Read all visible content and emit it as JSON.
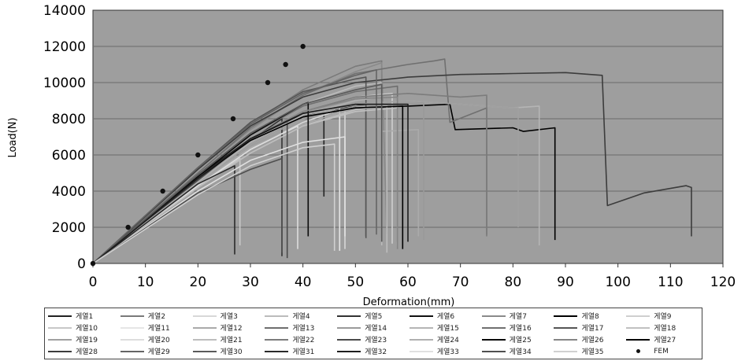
{
  "chart_data": {
    "type": "line",
    "xlabel": "Deformation(mm)",
    "ylabel": "Load(N)",
    "xlim": [
      0,
      120
    ],
    "ylim": [
      0,
      14000
    ],
    "x_ticks": [
      "0",
      "10",
      "20",
      "30",
      "40",
      "50",
      "60",
      "70",
      "80",
      "90",
      "100",
      "110",
      "120"
    ],
    "y_ticks": [
      "0",
      "2000",
      "4000",
      "6000",
      "8000",
      "10000",
      "12000",
      "14000"
    ],
    "grid": true,
    "legend_position": "bottom",
    "plot_background": "#9e9e9e",
    "series": [
      {
        "name": "게열1",
        "color": "#222222",
        "x": [
          0,
          20,
          30,
          40,
          44,
          44
        ],
        "y": [
          0,
          4600,
          6800,
          8300,
          8400,
          3700
        ]
      },
      {
        "name": "게열2",
        "color": "#7a7a7a",
        "x": [
          0,
          20,
          30,
          40,
          50,
          55,
          55
        ],
        "y": [
          0,
          5200,
          7700,
          9600,
          10900,
          11200,
          1400
        ]
      },
      {
        "name": "게열3",
        "color": "#d8d8d8",
        "x": [
          0,
          20,
          30,
          40,
          48,
          48
        ],
        "y": [
          0,
          4300,
          6300,
          7800,
          8600,
          800
        ]
      },
      {
        "name": "게열4",
        "color": "#bbbbbb",
        "x": [
          0,
          20,
          30,
          40,
          50,
          55,
          55
        ],
        "y": [
          0,
          4800,
          7100,
          8800,
          9800,
          10000,
          1000
        ]
      },
      {
        "name": "게열5",
        "color": "#333333",
        "x": [
          0,
          15,
          25,
          36,
          36
        ],
        "y": [
          0,
          3500,
          5800,
          8000,
          400
        ]
      },
      {
        "name": "게열6",
        "color": "#111111",
        "x": [
          0,
          20,
          30,
          40,
          52,
          52
        ],
        "y": [
          0,
          4800,
          6900,
          8200,
          8800,
          1500
        ]
      },
      {
        "name": "게열7",
        "color": "#8a8a8a",
        "x": [
          0,
          20,
          30,
          40,
          50,
          55,
          56
        ],
        "y": [
          0,
          5000,
          7400,
          9300,
          10600,
          11100,
          1600
        ]
      },
      {
        "name": "게열8",
        "color": "#000000",
        "x": [
          0,
          20,
          30,
          40,
          50,
          60,
          68,
          69,
          80,
          82,
          88,
          88
        ],
        "y": [
          0,
          4700,
          6800,
          8100,
          8600,
          8700,
          8800,
          7400,
          7500,
          7300,
          7500,
          1300
        ]
      },
      {
        "name": "게열9",
        "color": "#cfcfcf",
        "x": [
          0,
          20,
          30,
          40,
          50,
          57,
          57
        ],
        "y": [
          0,
          4600,
          6900,
          8400,
          9200,
          9400,
          1100
        ]
      },
      {
        "name": "게열10",
        "color": "#c8c8c8",
        "x": [
          0,
          20,
          28,
          28
        ],
        "y": [
          0,
          4300,
          5800,
          1000
        ]
      },
      {
        "name": "게열11",
        "color": "#e6e6e6",
        "x": [
          0,
          20,
          30,
          40,
          47,
          47
        ],
        "y": [
          0,
          4500,
          6600,
          8000,
          8600,
          700
        ]
      },
      {
        "name": "게열12",
        "color": "#aaaaaa",
        "x": [
          0,
          20,
          30,
          40,
          50,
          55,
          55,
          62,
          62
        ],
        "y": [
          0,
          4400,
          6400,
          7700,
          8600,
          8800,
          7300,
          7400,
          1500
        ]
      },
      {
        "name": "게열13",
        "color": "#6e6e6e",
        "x": [
          0,
          20,
          30,
          40,
          50,
          58,
          58
        ],
        "y": [
          0,
          4900,
          7100,
          8700,
          9500,
          9800,
          1200
        ]
      },
      {
        "name": "게열14",
        "color": "#9a9a9a",
        "x": [
          0,
          20,
          30,
          40,
          50,
          60,
          63,
          63
        ],
        "y": [
          0,
          4500,
          6600,
          8000,
          8700,
          8800,
          8900,
          1300
        ]
      },
      {
        "name": "게열15",
        "color": "#b5b5b5",
        "x": [
          0,
          20,
          30,
          40,
          50,
          60,
          70,
          80,
          85,
          85
        ],
        "y": [
          0,
          4600,
          6800,
          8200,
          8800,
          9000,
          8800,
          8600,
          8700,
          1000
        ]
      },
      {
        "name": "게열16",
        "color": "#707070",
        "x": [
          0,
          20,
          30,
          40,
          50,
          60,
          65,
          67,
          68,
          75,
          75
        ],
        "y": [
          0,
          5000,
          7500,
          9300,
          10500,
          11000,
          11200,
          11300,
          7800,
          8600,
          1600
        ]
      },
      {
        "name": "게열17",
        "color": "#555555",
        "x": [
          0,
          20,
          30,
          40,
          50,
          52,
          52
        ],
        "y": [
          0,
          5300,
          7800,
          9500,
          10200,
          10300,
          1400
        ]
      },
      {
        "name": "게열18",
        "color": "#c0c0c0",
        "x": [
          0,
          20,
          30,
          40,
          50,
          58,
          58
        ],
        "y": [
          0,
          4200,
          6100,
          7600,
          8400,
          8600,
          1000
        ]
      },
      {
        "name": "게열19",
        "color": "#a0a0a0",
        "x": [
          0,
          20,
          30,
          40,
          50,
          60,
          70,
          80,
          81,
          81
        ],
        "y": [
          0,
          4600,
          6700,
          8100,
          8800,
          9000,
          8800,
          8600,
          8600,
          2000
        ]
      },
      {
        "name": "게열20",
        "color": "#dddddd",
        "x": [
          0,
          20,
          30,
          39,
          39
        ],
        "y": [
          0,
          4300,
          6300,
          7600,
          800
        ]
      },
      {
        "name": "게열21",
        "color": "#bdbdbd",
        "x": [
          0,
          20,
          30,
          40,
          50,
          56,
          56
        ],
        "y": [
          0,
          4200,
          6100,
          7600,
          8500,
          8700,
          600
        ]
      },
      {
        "name": "게열22",
        "color": "#7c7c7c",
        "x": [
          0,
          20,
          30,
          40,
          50,
          60,
          70,
          75,
          75
        ],
        "y": [
          0,
          4700,
          6900,
          8400,
          9200,
          9400,
          9200,
          9300,
          1500
        ]
      },
      {
        "name": "게열23",
        "color": "#4a4a4a",
        "x": [
          0,
          20,
          30,
          37,
          37
        ],
        "y": [
          0,
          4600,
          6900,
          7900,
          300
        ]
      },
      {
        "name": "게열24",
        "color": "#b0b0b0",
        "x": [
          0,
          20,
          30,
          40,
          50,
          55,
          55
        ],
        "y": [
          0,
          4500,
          6700,
          8200,
          9000,
          9200,
          7500
        ]
      },
      {
        "name": "게열25",
        "color": "#0a0a0a",
        "x": [
          0,
          20,
          30,
          40,
          41,
          41
        ],
        "y": [
          0,
          4800,
          7100,
          8800,
          8900,
          1500
        ]
      },
      {
        "name": "게열26",
        "color": "#858585",
        "x": [
          0,
          20,
          30,
          40,
          50,
          58,
          58
        ],
        "y": [
          0,
          4700,
          6900,
          8400,
          9100,
          9200,
          800
        ]
      },
      {
        "name": "게열27",
        "color": "#000000",
        "x": [
          0,
          20,
          30,
          40,
          50,
          59,
          59
        ],
        "y": [
          0,
          4700,
          6800,
          8100,
          8600,
          8700,
          800
        ]
      },
      {
        "name": "게열28",
        "color": "#3c3c3c",
        "x": [
          0,
          20,
          30,
          40,
          50,
          60,
          70,
          80,
          90,
          97,
          98,
          105,
          113,
          114,
          114
        ],
        "y": [
          0,
          5200,
          7600,
          9200,
          10000,
          10300,
          10450,
          10500,
          10550,
          10400,
          3200,
          3900,
          4300,
          4200,
          1500
        ]
      },
      {
        "name": "게열29",
        "color": "#646464",
        "x": [
          0,
          20,
          30,
          40,
          50,
          54,
          54
        ],
        "y": [
          0,
          5300,
          7700,
          9400,
          10400,
          10700,
          1600
        ]
      },
      {
        "name": "게열30",
        "color": "#5a5a5a",
        "x": [
          0,
          20,
          30,
          40,
          50,
          55,
          55
        ],
        "y": [
          0,
          4900,
          7200,
          8800,
          9600,
          9900,
          1200
        ]
      },
      {
        "name": "게열31",
        "color": "#2a2a2a",
        "x": [
          0,
          20,
          27,
          27
        ],
        "y": [
          0,
          4400,
          5400,
          500
        ]
      },
      {
        "name": "게열32",
        "color": "#1e1e1e",
        "x": [
          0,
          20,
          30,
          40,
          50,
          60,
          60
        ],
        "y": [
          0,
          4700,
          6900,
          8300,
          8800,
          8800,
          1200
        ]
      },
      {
        "name": "게열33",
        "color": "#e0e0e0",
        "x": [
          0,
          20,
          30,
          40,
          48,
          48
        ],
        "y": [
          0,
          4000,
          5700,
          6700,
          7000,
          1500
        ]
      },
      {
        "name": "게열34",
        "color": "#4f4f4f",
        "x": [
          0,
          20,
          30,
          36,
          36
        ],
        "y": [
          0,
          3900,
          5200,
          5800,
          600
        ]
      },
      {
        "name": "게열35",
        "color": "#d0d0d0",
        "x": [
          0,
          20,
          30,
          40,
          46,
          46
        ],
        "y": [
          0,
          3800,
          5400,
          6400,
          6600,
          700
        ]
      }
    ],
    "fem": {
      "name": "FEM",
      "color": "#111111",
      "x": [
        0,
        6.7,
        13.3,
        20,
        26.7,
        33.3,
        36.7,
        40
      ],
      "y": [
        0,
        2000,
        4000,
        6000,
        8000,
        10000,
        11000,
        12000
      ]
    }
  }
}
